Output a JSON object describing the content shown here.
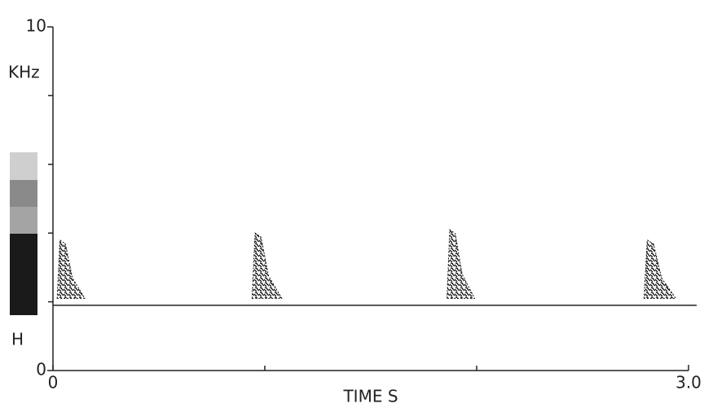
{
  "chart_data": {
    "type": "spectrogram",
    "y_label": "KHz",
    "x_label": "TIME S",
    "legend_label": "H",
    "xlim": [
      0,
      3
    ],
    "xticks": [
      0,
      {
        "value": 3,
        "label": "3.0"
      }
    ],
    "xminor": [
      1,
      2
    ],
    "ylim": [
      0,
      10
    ],
    "yticks": [
      0,
      10
    ],
    "yminor": [
      2,
      4,
      6,
      8
    ],
    "reference_line": 1.9,
    "bursts": {
      "start": [
        0.02,
        0.94,
        1.86,
        2.79
      ],
      "end": [
        0.15,
        1.08,
        1.99,
        2.94
      ],
      "low": [
        2.1,
        2.1,
        2.1,
        2.1
      ],
      "high": [
        3.8,
        4.0,
        4.1,
        3.8
      ]
    },
    "color": "#111"
  }
}
